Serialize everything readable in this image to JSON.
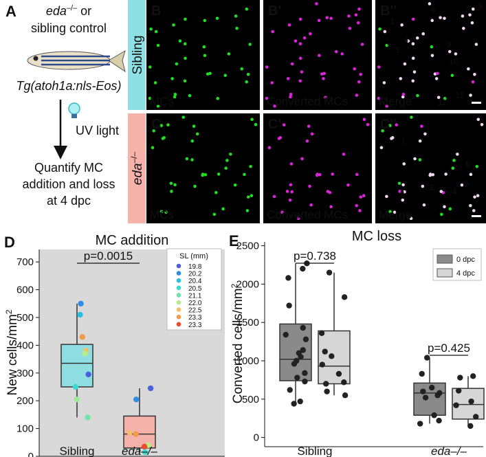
{
  "panel_a": {
    "label": "A",
    "line1_italic": "eda",
    "line1_sup": "–/–",
    "line1_rest": " or",
    "line2": "sibling control",
    "transgene": "Tg(atoh1a:nls-Eos)",
    "uv": "UV light",
    "quantify": [
      "Quantify MC",
      "addition and loss",
      "at 4 dpc"
    ]
  },
  "images": {
    "rows": [
      {
        "label": "Sibling",
        "panels": [
          {
            "label": "B",
            "caption": "MCs"
          },
          {
            "label": "B'",
            "caption": "Converted MCs"
          },
          {
            "label": "B''",
            "caption": "Merge",
            "numbers": [
              "1",
              "2",
              "3",
              "4",
              "5",
              "6",
              "7",
              "8",
              "9",
              "10",
              "11",
              "12"
            ]
          }
        ]
      },
      {
        "label_italic": "eda",
        "label_sup": "–/–",
        "panels": [
          {
            "label": "C",
            "caption": "MCs"
          },
          {
            "label": "C'",
            "caption": "Converted MCs"
          },
          {
            "label": "C''",
            "caption": "Merge",
            "numbers": [
              "1",
              "2",
              "3",
              "4",
              "5",
              "6"
            ]
          }
        ]
      }
    ]
  },
  "chart_data": [
    {
      "type": "box",
      "panel": "D",
      "title": "MC addition",
      "ylabel": "New cells/mm",
      "ylabel_sup": "2",
      "categories": [
        "Sibling",
        "eda–/–"
      ],
      "ylim": [
        0,
        745
      ],
      "yticks": [
        0,
        100,
        200,
        300,
        400,
        500,
        600,
        700
      ],
      "background": "#d9d9d9",
      "boxes": [
        {
          "min": 140,
          "q1": 250,
          "median": 335,
          "q3": 403,
          "max": 550,
          "color": "#8fdfe2",
          "points": [
            {
              "value": 550,
              "color": "#2e8ee6"
            },
            {
              "value": 510,
              "color": "#27c0e0"
            },
            {
              "value": 430,
              "color": "#f39a4a"
            },
            {
              "value": 380,
              "color": "#f3c06a"
            },
            {
              "value": 370,
              "color": "#b6ec8a"
            },
            {
              "value": 295,
              "color": "#4c5fe0"
            },
            {
              "value": 250,
              "color": "#3bd8d0"
            },
            {
              "value": 205,
              "color": "#9ee89a"
            },
            {
              "value": 140,
              "color": "#6fe3a8"
            }
          ]
        },
        {
          "min": 15,
          "q1": 30,
          "median": 80,
          "q3": 145,
          "max": 245,
          "color": "#f5b2ab",
          "points": [
            {
              "value": 245,
              "color": "#4c5fe0"
            },
            {
              "value": 205,
              "color": "#2e8ee6"
            },
            {
              "value": 85,
              "color": "#f3c06a"
            },
            {
              "value": 80,
              "color": "#f39a4a"
            },
            {
              "value": 40,
              "color": "#b6ec8a"
            },
            {
              "value": 35,
              "color": "#ef4a2a"
            },
            {
              "value": 15,
              "color": "#3bd8d0"
            }
          ]
        }
      ],
      "legend_title": "SL (mm)",
      "legend": [
        {
          "label": "19.8",
          "color": "#4c5fe0"
        },
        {
          "label": "20.2",
          "color": "#2e8ee6"
        },
        {
          "label": "20.4",
          "color": "#27c0e0"
        },
        {
          "label": "20.5",
          "color": "#3bd8d0"
        },
        {
          "label": "21.1",
          "color": "#6fe3a8"
        },
        {
          "label": "22.0",
          "color": "#b6ec8a"
        },
        {
          "label": "22.5",
          "color": "#f3c06a"
        },
        {
          "label": "23.3",
          "color": "#f39a4a"
        },
        {
          "label": "23.3",
          "color": "#ef4a2a"
        }
      ],
      "annotations": [
        "p=0.0015"
      ]
    },
    {
      "type": "grouped-box",
      "panel": "E",
      "title": "MC loss",
      "ylabel": "Converted cells/mm",
      "ylabel_sup": "2",
      "categories": [
        "Sibling",
        "eda–/–"
      ],
      "ylim": [
        -120,
        2550
      ],
      "yticks": [
        0,
        500,
        1000,
        1500,
        2000,
        2500
      ],
      "point_color": "#222222",
      "series": [
        {
          "name": "0 dpc",
          "color": "#8a8a8a",
          "boxes": [
            {
              "min": 440,
              "q1": 740,
              "median": 1020,
              "q3": 1480,
              "max": 2270,
              "points": [
                2270,
                2200,
                2080,
                1720,
                1430,
                1340,
                1280,
                1140,
                1100,
                1050,
                1000,
                960,
                840,
                780,
                730,
                620,
                470,
                440
              ]
            },
            {
              "min": 180,
              "q1": 290,
              "median": 580,
              "q3": 710,
              "max": 1040,
              "points": [
                1040,
                830,
                650,
                600,
                580,
                550,
                520,
                290,
                220,
                180
              ]
            }
          ]
        },
        {
          "name": "4 dpc",
          "color": "#d6d6d6",
          "boxes": [
            {
              "min": 550,
              "q1": 700,
              "median": 930,
              "q3": 1390,
              "max": 2150,
              "points": [
                2150,
                1830,
                1360,
                1120,
                1060,
                950,
                830,
                720,
                700,
                600,
                550
              ]
            },
            {
              "min": 150,
              "q1": 240,
              "median": 430,
              "q3": 640,
              "max": 800,
              "points": [
                800,
                780,
                610,
                470,
                420,
                270,
                150
              ]
            }
          ]
        }
      ],
      "annotations": [
        "p=0.738",
        "p=0.425"
      ]
    }
  ]
}
